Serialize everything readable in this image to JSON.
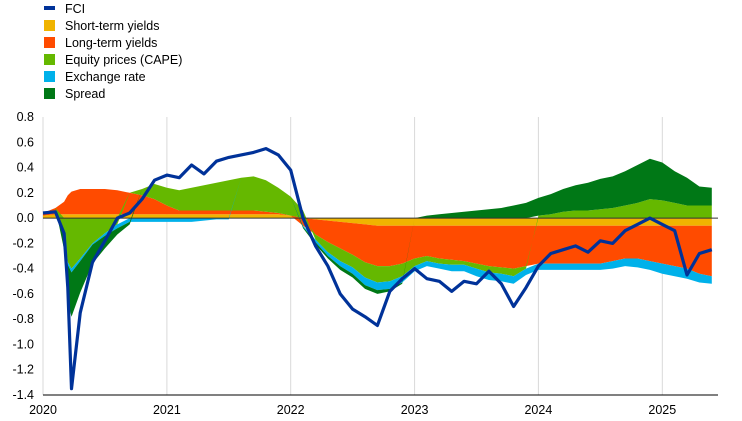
{
  "chart_data": {
    "type": "area",
    "title": "",
    "xlabel": "",
    "ylabel": "",
    "xlim": [
      2020.0,
      2025.45
    ],
    "ylim": [
      -1.4,
      0.8
    ],
    "yticks": [
      "0.8",
      "0.6",
      "0.4",
      "0.2",
      "0.0",
      "-0.2",
      "-0.4",
      "-0.6",
      "-0.8",
      "-1.0",
      "-1.2",
      "-1.4"
    ],
    "xticks": [
      "2020",
      "2021",
      "2022",
      "2023",
      "2024",
      "2025"
    ],
    "grid": "vertical",
    "legend_position": "top-left",
    "x": [
      2020.0,
      2020.1,
      2020.17,
      2020.2,
      2020.23,
      2020.3,
      2020.4,
      2020.5,
      2020.6,
      2020.7,
      2020.8,
      2020.9,
      2021.0,
      2021.1,
      2021.2,
      2021.3,
      2021.4,
      2021.5,
      2021.6,
      2021.7,
      2021.8,
      2021.9,
      2022.0,
      2022.1,
      2022.2,
      2022.3,
      2022.4,
      2022.5,
      2022.6,
      2022.7,
      2022.8,
      2022.9,
      2023.0,
      2023.1,
      2023.2,
      2023.3,
      2023.4,
      2023.5,
      2023.6,
      2023.7,
      2023.8,
      2023.9,
      2024.0,
      2024.1,
      2024.2,
      2024.3,
      2024.4,
      2024.5,
      2024.6,
      2024.7,
      2024.8,
      2024.9,
      2025.0,
      2025.1,
      2025.2,
      2025.3,
      2025.4
    ],
    "series": [
      {
        "name": "Short-term yields",
        "color": "#f0b400",
        "values": [
          0.02,
          0.03,
          0.03,
          0.03,
          0.03,
          0.03,
          0.03,
          0.03,
          0.03,
          0.03,
          0.03,
          0.03,
          0.03,
          0.03,
          0.03,
          0.03,
          0.03,
          0.03,
          0.03,
          0.03,
          0.03,
          0.03,
          0.02,
          0.0,
          -0.01,
          -0.02,
          -0.03,
          -0.04,
          -0.05,
          -0.06,
          -0.06,
          -0.06,
          -0.06,
          -0.06,
          -0.06,
          -0.06,
          -0.06,
          -0.06,
          -0.06,
          -0.06,
          -0.06,
          -0.06,
          -0.06,
          -0.06,
          -0.06,
          -0.06,
          -0.06,
          -0.06,
          -0.06,
          -0.06,
          -0.06,
          -0.06,
          -0.06,
          -0.06,
          -0.06,
          -0.06,
          -0.06
        ]
      },
      {
        "name": "Long-term yields",
        "color": "#ff4b00",
        "values": [
          0.02,
          0.05,
          0.1,
          0.15,
          0.18,
          0.2,
          0.2,
          0.2,
          0.19,
          0.17,
          0.15,
          0.12,
          0.07,
          0.03,
          0.03,
          0.03,
          0.03,
          0.03,
          0.03,
          0.03,
          0.02,
          0.01,
          0.0,
          -0.06,
          -0.12,
          -0.17,
          -0.21,
          -0.25,
          -0.3,
          -0.32,
          -0.32,
          -0.3,
          -0.26,
          -0.24,
          -0.26,
          -0.27,
          -0.28,
          -0.3,
          -0.32,
          -0.33,
          -0.34,
          -0.32,
          -0.3,
          -0.3,
          -0.3,
          -0.3,
          -0.3,
          -0.3,
          -0.28,
          -0.26,
          -0.26,
          -0.28,
          -0.3,
          -0.32,
          -0.34,
          -0.38,
          -0.4
        ]
      },
      {
        "name": "Equity prices (CAPE)",
        "color": "#65b800",
        "values": [
          0.0,
          0.0,
          -0.15,
          -0.35,
          -0.4,
          -0.32,
          -0.2,
          -0.12,
          -0.05,
          0.0,
          0.05,
          0.12,
          0.14,
          0.16,
          0.18,
          0.2,
          0.22,
          0.24,
          0.26,
          0.27,
          0.25,
          0.2,
          0.15,
          0.06,
          -0.04,
          -0.08,
          -0.1,
          -0.1,
          -0.12,
          -0.13,
          -0.12,
          -0.1,
          -0.06,
          -0.04,
          -0.04,
          -0.04,
          -0.03,
          -0.04,
          -0.05,
          -0.05,
          -0.06,
          -0.02,
          0.02,
          0.03,
          0.05,
          0.06,
          0.06,
          0.07,
          0.08,
          0.1,
          0.12,
          0.15,
          0.14,
          0.12,
          0.1,
          0.1,
          0.1
        ]
      },
      {
        "name": "Exchange rate",
        "color": "#00b1ea",
        "values": [
          0.0,
          0.0,
          0.0,
          -0.02,
          -0.03,
          -0.02,
          -0.01,
          -0.02,
          -0.03,
          -0.03,
          -0.03,
          -0.03,
          -0.03,
          -0.03,
          -0.03,
          -0.02,
          -0.01,
          -0.01,
          0.0,
          0.0,
          0.0,
          0.0,
          0.0,
          -0.01,
          -0.02,
          -0.03,
          -0.04,
          -0.05,
          -0.06,
          -0.06,
          -0.06,
          -0.05,
          -0.04,
          -0.04,
          -0.04,
          -0.05,
          -0.05,
          -0.06,
          -0.06,
          -0.06,
          -0.06,
          -0.05,
          -0.05,
          -0.05,
          -0.05,
          -0.05,
          -0.05,
          -0.05,
          -0.06,
          -0.06,
          -0.07,
          -0.07,
          -0.08,
          -0.08,
          -0.08,
          -0.07,
          -0.06
        ]
      },
      {
        "name": "Spread",
        "color": "#007816",
        "values": [
          0.0,
          0.0,
          -0.1,
          -0.3,
          -0.35,
          -0.25,
          -0.15,
          -0.1,
          -0.05,
          -0.02,
          0.0,
          0.0,
          0.0,
          0.0,
          0.0,
          0.0,
          0.0,
          0.0,
          0.0,
          0.0,
          0.0,
          0.0,
          0.0,
          -0.01,
          -0.02,
          -0.02,
          -0.03,
          -0.03,
          -0.03,
          -0.03,
          -0.02,
          -0.01,
          0.0,
          0.02,
          0.03,
          0.04,
          0.05,
          0.06,
          0.07,
          0.08,
          0.1,
          0.12,
          0.14,
          0.16,
          0.18,
          0.2,
          0.22,
          0.24,
          0.25,
          0.27,
          0.3,
          0.32,
          0.3,
          0.25,
          0.22,
          0.15,
          0.14
        ]
      },
      {
        "name": "FCI",
        "color": "#003299",
        "type": "line",
        "values": [
          0.04,
          0.05,
          -0.12,
          -0.55,
          -1.35,
          -0.75,
          -0.35,
          -0.18,
          0.0,
          0.04,
          0.15,
          0.3,
          0.34,
          0.32,
          0.42,
          0.35,
          0.45,
          0.48,
          0.5,
          0.52,
          0.55,
          0.5,
          0.38,
          0.0,
          -0.22,
          -0.38,
          -0.6,
          -0.72,
          -0.78,
          -0.85,
          -0.58,
          -0.48,
          -0.4,
          -0.48,
          -0.5,
          -0.58,
          -0.5,
          -0.52,
          -0.42,
          -0.52,
          -0.7,
          -0.55,
          -0.38,
          -0.28,
          -0.25,
          -0.22,
          -0.27,
          -0.18,
          -0.2,
          -0.1,
          -0.05,
          0.0,
          -0.05,
          -0.1,
          -0.45,
          -0.28,
          -0.25
        ]
      }
    ]
  }
}
